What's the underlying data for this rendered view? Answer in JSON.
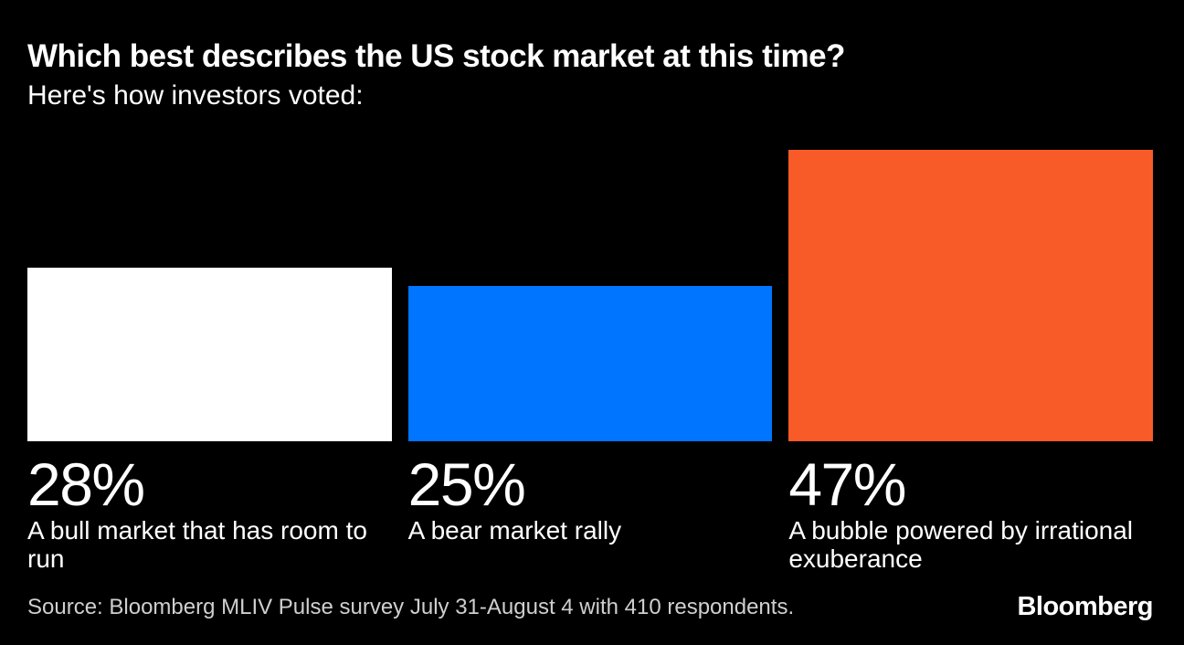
{
  "header": {
    "title": "Which best describes the US stock market at this time?",
    "subtitle": "Here's how investors voted:"
  },
  "chart_data": {
    "type": "bar",
    "title": "Which best describes the US stock market at this time?",
    "subtitle": "Here's how investors voted:",
    "categories": [
      "A bull market that has room to run",
      "A bear market rally",
      "A bubble powered by irrational exuberance"
    ],
    "values": [
      28,
      25,
      47
    ],
    "value_labels": [
      "28%",
      "25%",
      "47%"
    ],
    "unit": "%",
    "bar_colors": [
      "#ffffff",
      "#0075ff",
      "#f95b28"
    ],
    "background_color": "#000000",
    "orientation": "vertical",
    "axes_hidden": true,
    "grid": false,
    "legend": "none",
    "value_label_position": "below-bar"
  },
  "footer": {
    "source": "Source: Bloomberg MLIV Pulse survey July 31-August 4 with 410 respondents.",
    "logo": "Bloomberg"
  }
}
